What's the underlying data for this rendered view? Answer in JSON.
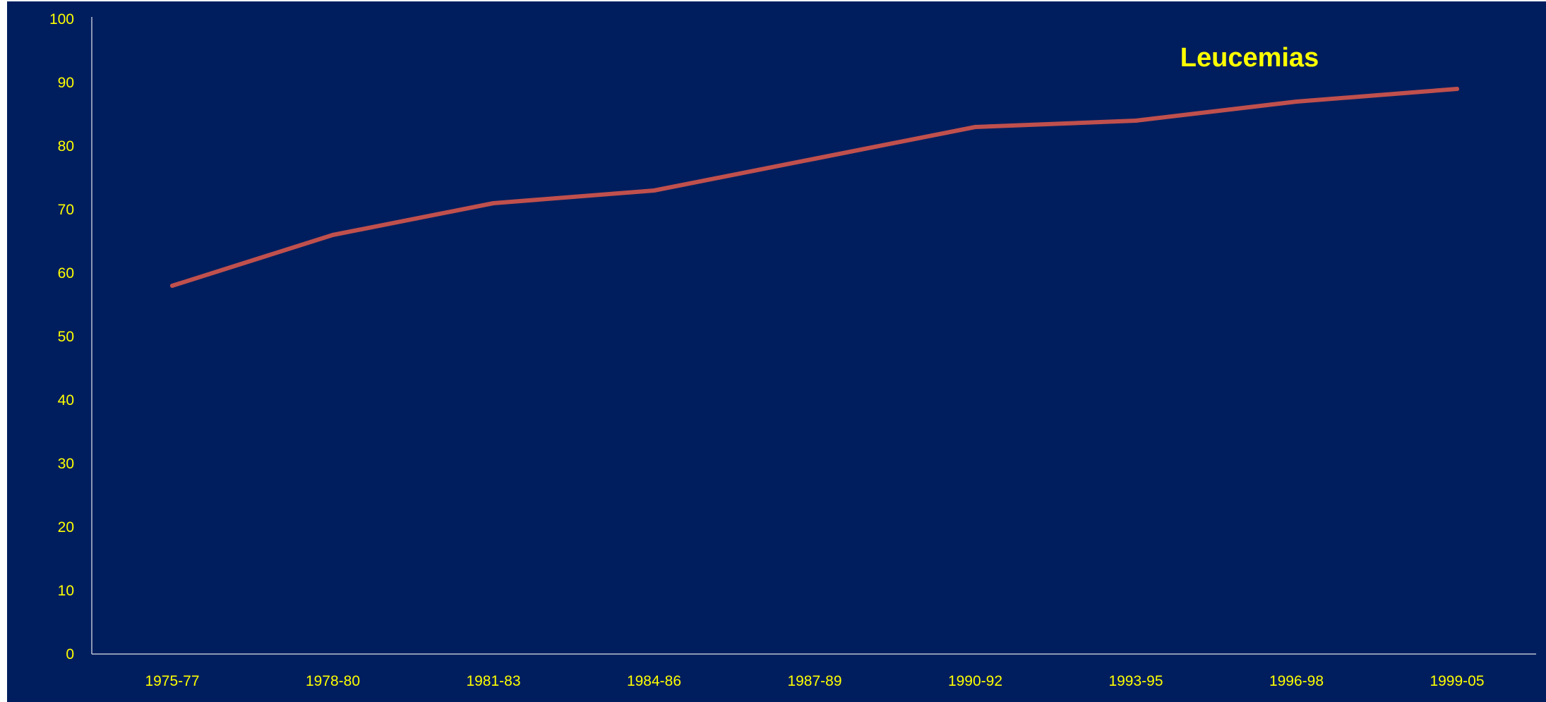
{
  "chart_data": {
    "type": "line",
    "title": "Leucemias",
    "categories": [
      "1975-77",
      "1978-80",
      "1981-83",
      "1984-86",
      "1987-89",
      "1990-92",
      "1993-95",
      "1996-98",
      "1999-05"
    ],
    "series": [
      {
        "name": "Leucemias",
        "values": [
          58,
          66,
          71,
          73,
          78,
          83,
          84,
          87,
          89
        ]
      }
    ],
    "ylim": [
      0,
      100
    ],
    "yticks": [
      0,
      10,
      20,
      30,
      40,
      50,
      60,
      70,
      80,
      90,
      100
    ],
    "xlabel": "",
    "ylabel": "",
    "grid": false,
    "legend": "none"
  },
  "colors": {
    "background": "#001E5E",
    "outer_border": "#ffffff",
    "axis": "#B8C0D0",
    "tick_text": "#FFFF00",
    "title_text": "#FFFF00",
    "line": "#C0504D"
  }
}
